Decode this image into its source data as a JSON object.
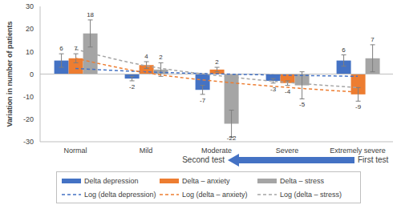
{
  "chart_data": {
    "type": "bar",
    "ylabel": "Variation in number of patients",
    "categories": [
      "Normal",
      "Mild",
      "Moderate",
      "Severe",
      "Extremely severe"
    ],
    "series": [
      {
        "name": "Delta depression",
        "type": "bar",
        "color": "#4472c4",
        "values": [
          6,
          -2,
          -7,
          -3,
          6
        ],
        "errors": [
          3,
          1,
          2,
          1,
          2.5
        ]
      },
      {
        "name": "Delta – anxiety",
        "type": "bar",
        "color": "#ed7d31",
        "values": [
          7,
          4,
          2,
          -4,
          -9
        ],
        "errors": [
          2,
          1.5,
          1,
          1,
          3
        ]
      },
      {
        "name": "Delta – stress",
        "type": "bar",
        "color": "#a5a5a5",
        "values": [
          18,
          2,
          -22,
          -5,
          7
        ],
        "errors": [
          6,
          3,
          6,
          6,
          6
        ]
      },
      {
        "name": "Log (delta depression)",
        "type": "line",
        "line_style": "dashed",
        "color": "#4472c4",
        "values": [
          2.5,
          1,
          0.1,
          -0.5,
          -1
        ]
      },
      {
        "name": "Log (delta – anxiety)",
        "type": "line",
        "line_style": "dashed",
        "color": "#ed7d31",
        "values": [
          7,
          0.6,
          -3.2,
          -5.9,
          -8
        ]
      },
      {
        "name": "Log (delta – stress)",
        "type": "line",
        "line_style": "dashed",
        "color": "#a5a5a5",
        "values": [
          11,
          3.7,
          -0.6,
          -3.7,
          -6
        ]
      }
    ],
    "ylim": [
      -30,
      30
    ],
    "yticks": [
      -30,
      -20,
      -10,
      0,
      10,
      20,
      30
    ],
    "grid": false,
    "legend": "bottom",
    "data_labels": true,
    "annotations": [
      "Second test",
      "First test"
    ]
  }
}
